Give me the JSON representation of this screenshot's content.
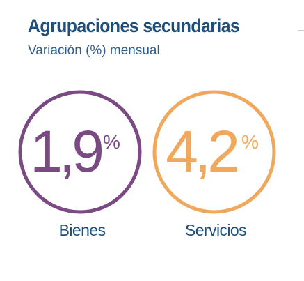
{
  "title": "Agrupaciones secundarias",
  "subtitle": "Variación (%) mensual",
  "colors": {
    "title": "#1f4e79",
    "subtitle": "#2f5e8a",
    "label": "#1f4e79",
    "bienes": "#7a4a82",
    "servicios": "#f0a85c"
  },
  "chart_data": {
    "type": "table",
    "title": "Agrupaciones secundarias",
    "subtitle": "Variación (%) mensual",
    "unit": "%",
    "categories": [
      "Bienes",
      "Servicios"
    ],
    "values": [
      1.9,
      4.2
    ],
    "display_values": [
      "1,9",
      "4,2"
    ]
  }
}
